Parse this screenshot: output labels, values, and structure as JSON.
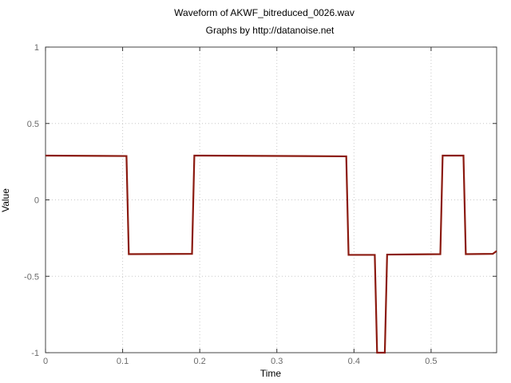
{
  "chart_data": {
    "type": "line",
    "title": "Waveform of AKWF_bitreduced_0026.wav",
    "subtitle": "Graphs by http://datanoise.net",
    "xlabel": "Time",
    "ylabel": "Value",
    "xlim": [
      0,
      0.585
    ],
    "ylim": [
      -1,
      1
    ],
    "xticks": [
      0,
      0.1,
      0.2,
      0.3,
      0.4,
      0.5
    ],
    "xtick_labels": [
      "0",
      "0.1",
      "0.2",
      "0.3",
      "0.4",
      "0.5"
    ],
    "yticks": [
      -1,
      -0.5,
      0,
      0.5,
      1
    ],
    "ytick_labels": [
      "-1",
      "-0.5",
      "0",
      "0.5",
      "1"
    ],
    "grid": true,
    "series": [
      {
        "color": "#8b1a10",
        "x": [
          0,
          0.105,
          0.108,
          0.19,
          0.193,
          0.39,
          0.393,
          0.427,
          0.43,
          0.44,
          0.443,
          0.512,
          0.515,
          0.542,
          0.545,
          0.58,
          0.585
        ],
        "y": [
          0.29,
          0.287,
          -0.355,
          -0.353,
          0.29,
          0.285,
          -0.36,
          -0.36,
          -1,
          -1,
          -0.358,
          -0.355,
          0.29,
          0.29,
          -0.355,
          -0.353,
          -0.335
        ]
      }
    ]
  }
}
